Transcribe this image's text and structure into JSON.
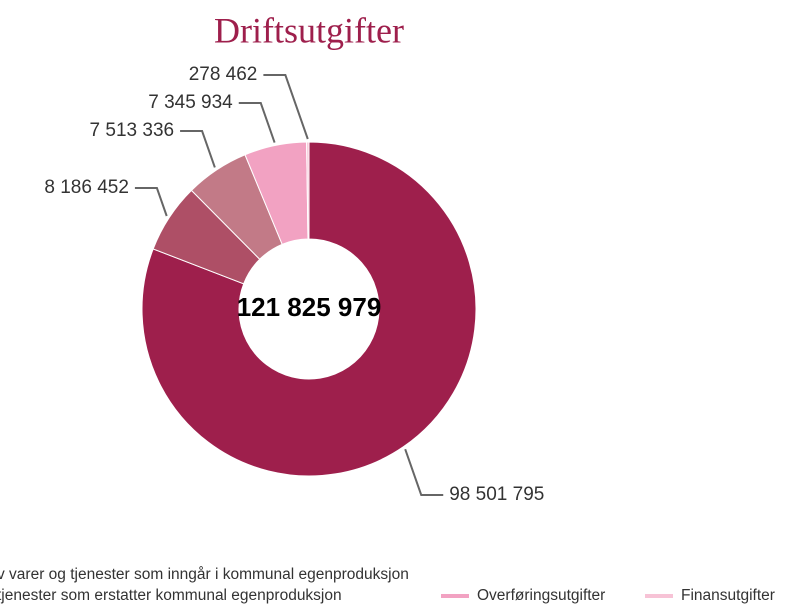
{
  "chart_data": {
    "type": "donut",
    "title": "Driftsutgifter",
    "total": {
      "value": 121825979,
      "label": "121 825 979"
    },
    "categories": [
      null,
      "v varer og tjenester som inngår i kommunal egenproduksjon",
      "tjenester som erstatter kommunal egenproduksjon",
      "Overføringsutgifter",
      "Finansutgifter"
    ],
    "values": [
      98501795,
      8186452,
      7513336,
      7345934,
      278462
    ],
    "value_labels": [
      "98 501 795",
      "8 186 452",
      "7 513 336",
      "7 345 934",
      "278 462"
    ],
    "colors": [
      "#9e1f4c",
      "#ae4f66",
      "#c27a87",
      "#f2a2c2",
      "#f7c3d6"
    ]
  }
}
